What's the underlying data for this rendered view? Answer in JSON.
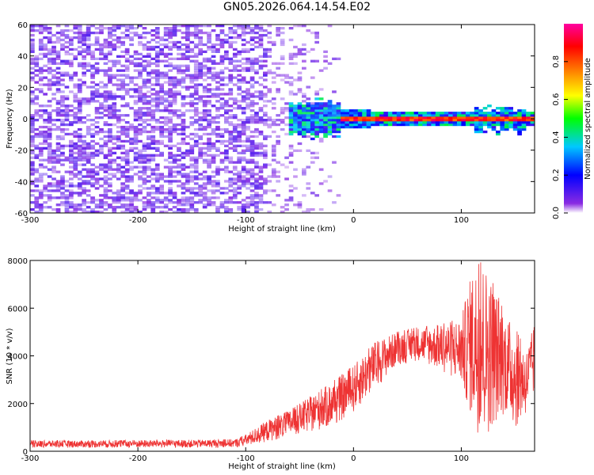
{
  "title": "GN05.2026.064.14.54.E02",
  "chart_data": [
    {
      "type": "heatmap",
      "xlabel": "Height of straight line (km)",
      "ylabel": "Frequency (Hz)",
      "xlim": [
        -300,
        168
      ],
      "ylim": [
        -60,
        60
      ],
      "xticks": [
        -300,
        -200,
        -100,
        0,
        100
      ],
      "xtick_labels": [
        "-300",
        "-200",
        "-100",
        "0",
        "100"
      ],
      "yticks": [
        -60,
        -40,
        -20,
        0,
        20,
        40,
        60
      ],
      "ytick_labels": [
        "-60",
        "-40",
        "-20",
        "0",
        "20",
        "40",
        "60"
      ],
      "colorbar": {
        "label": "Normalized spectral amplitude",
        "range": [
          0.0,
          1.0
        ],
        "ticks": [
          0.0,
          0.2,
          0.4,
          0.6,
          0.8
        ],
        "tick_labels": [
          "0.0",
          "0.2",
          "0.4",
          "0.6",
          "0.8"
        ],
        "colors": [
          "#ffffff",
          "#8a2be2",
          "#0000ff",
          "#00c8ff",
          "#00ff00",
          "#ffff00",
          "#ff8000",
          "#ff0000",
          "#ff00a0"
        ]
      },
      "regions": [
        {
          "x_range": [
            -300,
            -80
          ],
          "freq_range": [
            -60,
            60
          ],
          "amplitude": 0.08,
          "description": "noise"
        },
        {
          "x_range": [
            -80,
            0
          ],
          "freq_range": [
            -15,
            15
          ],
          "amplitude": 0.35
        },
        {
          "x_range": [
            0,
            168
          ],
          "freq_range": [
            -2,
            2
          ],
          "amplitude": 0.9
        }
      ]
    },
    {
      "type": "line",
      "xlabel": "Height of straight line (km)",
      "ylabel": "SNR (10 * v/v)",
      "xlim": [
        -300,
        168
      ],
      "ylim": [
        0,
        8000
      ],
      "xticks": [
        -300,
        -200,
        -100,
        0,
        100
      ],
      "xtick_labels": [
        "-300",
        "-200",
        "-100",
        "0",
        "100"
      ],
      "yticks": [
        0,
        2000,
        4000,
        6000,
        8000
      ],
      "ytick_labels": [
        "0",
        "2000",
        "4000",
        "6000",
        "8000"
      ],
      "line_color": "#ee3333",
      "envelope": {
        "x": [
          -300,
          -250,
          -200,
          -150,
          -110,
          -100,
          -80,
          -60,
          -40,
          -20,
          0,
          20,
          40,
          60,
          80,
          100,
          110,
          120,
          130,
          140,
          150,
          160,
          168
        ],
        "low": [
          150,
          150,
          150,
          150,
          160,
          200,
          400,
          600,
          800,
          1000,
          1600,
          2600,
          3600,
          3800,
          3400,
          2800,
          1200,
          400,
          1000,
          1600,
          900,
          1500,
          2200
        ],
        "high": [
          450,
          450,
          470,
          480,
          500,
          700,
          1300,
          1700,
          2300,
          2900,
          3600,
          4600,
          5000,
          5200,
          5300,
          5600,
          7600,
          8000,
          7000,
          5800,
          5200,
          4200,
          5400
        ]
      }
    }
  ]
}
